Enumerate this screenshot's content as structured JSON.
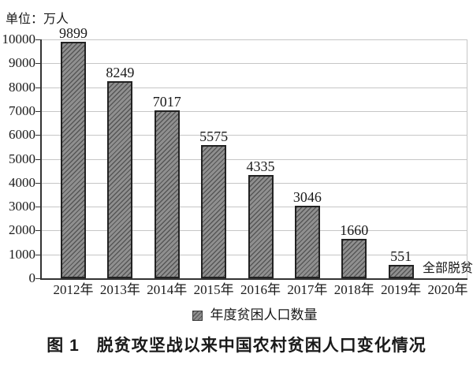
{
  "chart_data": {
    "type": "bar",
    "title": "图 1　脱贫攻坚战以来中国农村贫困人口变化情况",
    "unit_label": "单位：万人",
    "categories": [
      "2012年",
      "2013年",
      "2014年",
      "2015年",
      "2016年",
      "2017年",
      "2018年",
      "2019年",
      "2020年"
    ],
    "values": [
      9899,
      8249,
      7017,
      5575,
      4335,
      3046,
      1660,
      551,
      null
    ],
    "annotations": [
      {
        "category_index": 8,
        "text": "全部脱贫"
      }
    ],
    "legend_label": "年度贫困人口数量",
    "legend_position": "bottom",
    "xlabel": "",
    "ylabel": "",
    "ylim": [
      0,
      10000
    ],
    "ytick_step": 1000,
    "grid": true
  },
  "colors": {
    "bar_fill": "#8f8f8f",
    "bar_hatch_line": "#565656",
    "bar_border": "#222222",
    "gridline": "#c6c6c6",
    "axis": "#333333",
    "text": "#1a1a1a"
  }
}
